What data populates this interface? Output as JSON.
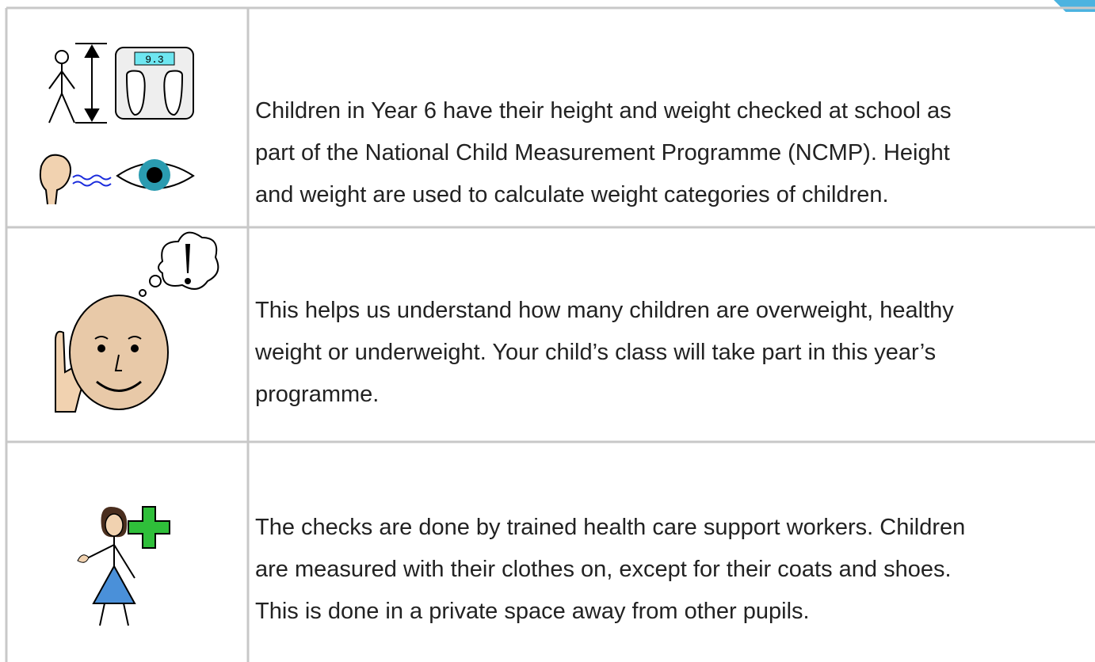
{
  "document": {
    "rows": [
      {
        "icon_text": "9.3",
        "lines": [
          "Children in Year 6 have their height and weight checked at school as",
          "part of the National Child Measurement Programme (NCMP). Height",
          "and weight are used to calculate weight categories of children."
        ]
      },
      {
        "lines": [
          "This helps us understand how many children are overweight, healthy",
          "weight or underweight. Your child’s class will take part in this year’s",
          "programme."
        ]
      },
      {
        "lines": [
          "The checks are done by trained health care support workers. Children",
          "are measured with their clothes on, except for their coats and shoes.",
          "This is done in a private space away from other pupils."
        ]
      }
    ]
  }
}
